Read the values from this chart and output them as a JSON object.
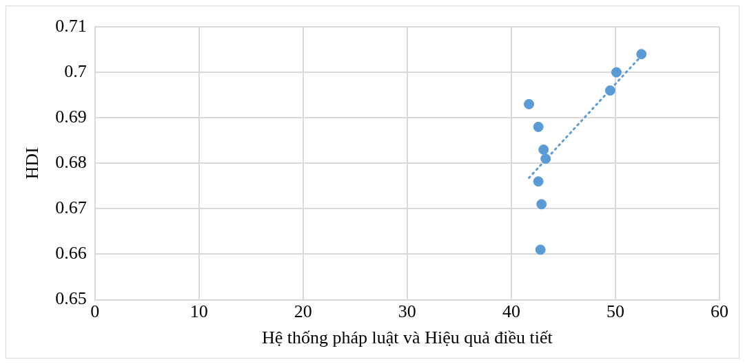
{
  "chart_data": {
    "type": "scatter",
    "xlabel": "Hệ thống pháp luật và Hiệu quả điều tiết",
    "ylabel": "HDI",
    "xlim": [
      0,
      60
    ],
    "xticks": [
      0,
      10,
      20,
      30,
      40,
      50,
      60
    ],
    "ylim": [
      0.65,
      0.71
    ],
    "yticks": [
      0.65,
      0.66,
      0.67,
      0.68,
      0.69,
      0.7,
      0.71
    ],
    "grid": true,
    "legend": false,
    "marker": "circle",
    "series": [
      {
        "color": "#5b9bd5",
        "x": [
          41.7,
          42.6,
          43.1,
          43.3,
          42.6,
          42.9,
          42.8,
          49.5,
          50.1,
          52.5
        ],
        "values": [
          0.693,
          0.688,
          0.683,
          0.681,
          0.676,
          0.671,
          0.661,
          0.696,
          0.7,
          0.704
        ]
      },
      {
        "type": "line",
        "color": "#5b9bd5",
        "line_style": "dotted",
        "marker": "none",
        "x": [
          41.7,
          52.2
        ],
        "values": [
          0.6768,
          0.7029
        ]
      }
    ]
  }
}
